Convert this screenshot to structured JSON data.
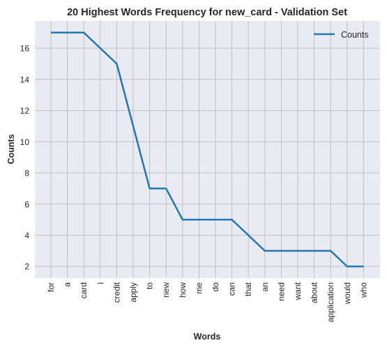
{
  "chart_data": {
    "type": "line",
    "title": "20 Highest Words Frequency for new_card - Validation Set",
    "xlabel": "Words",
    "ylabel": "Counts",
    "categories": [
      "for",
      "a",
      "card",
      "i",
      "credit",
      "apply",
      "to",
      "new",
      "how",
      "me",
      "do",
      "can",
      "that",
      "an",
      "need",
      "want",
      "about",
      "application",
      "would",
      "who"
    ],
    "series": [
      {
        "name": "Counts",
        "values": [
          17,
          17,
          17,
          16,
          15,
          11,
          7,
          7,
          5,
          5,
          5,
          5,
          4,
          3,
          3,
          3,
          3,
          3,
          2,
          2
        ],
        "color": "#1f77b4"
      }
    ],
    "ylim": [
      1.25,
      17.75
    ],
    "yticks": [
      2,
      4,
      6,
      8,
      10,
      12,
      14,
      16
    ],
    "grid": true,
    "legend_position": "top-right",
    "colors": {
      "plot_background": "#eaeaf2",
      "grid": "#c0c0c0",
      "text": "#262626"
    }
  }
}
